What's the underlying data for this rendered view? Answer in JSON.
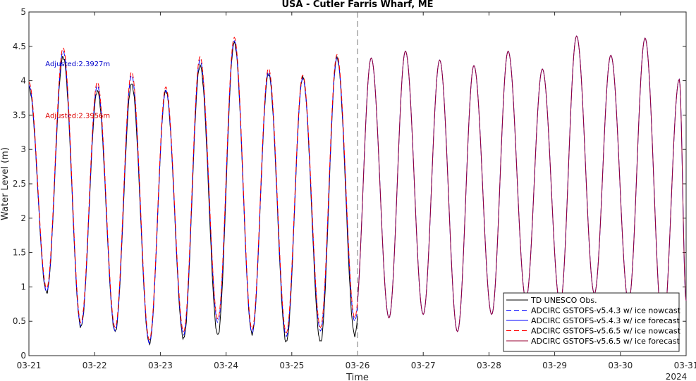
{
  "chart_data": {
    "type": "line",
    "title": "USA - Cutler Farris Wharf, ME",
    "xlabel": "Time",
    "ylabel": "Water Level (m)",
    "xlim": [
      "2024-03-21",
      "2024-03-31"
    ],
    "ylim": [
      0,
      5
    ],
    "yticks": [
      0,
      0.5,
      1,
      1.5,
      2,
      2.5,
      3,
      3.5,
      4,
      4.5,
      5
    ],
    "xticks": [
      "03-21",
      "03-22",
      "03-23",
      "03-24",
      "03-25",
      "03-26",
      "03-27",
      "03-28",
      "03-29",
      "03-30",
      "03-31"
    ],
    "year_label": "2024",
    "nowcast_end": "2024-03-26",
    "legend_position": "bottom-right",
    "annotations": [
      {
        "text": "Adjusted:2.3927m",
        "color": "#0000cc",
        "x": "2024-03-21 06:00",
        "y": 4.25
      },
      {
        "text": "Adjusted:2.3956m",
        "color": "#dd0000",
        "x": "2024-03-21 06:00",
        "y": 3.5
      }
    ],
    "extrema_times_hours": [
      0,
      6.5,
      12.5,
      19,
      25,
      31.5,
      37.5,
      44,
      50,
      56.5,
      62.5,
      69,
      75,
      81.5,
      87.5,
      94,
      100,
      106.5,
      112.5,
      119,
      125,
      131.5,
      137.5,
      144,
      150,
      156.5,
      162.5,
      169,
      175,
      181.5,
      187.5,
      194,
      200,
      206.5,
      212.5,
      219,
      225,
      231.5,
      237.5,
      240
    ],
    "extrema_levels_m": [
      3.95,
      0.95,
      4.45,
      0.45,
      3.95,
      0.38,
      4.1,
      0.2,
      3.88,
      0.32,
      4.32,
      0.5,
      4.6,
      0.35,
      4.15,
      0.3,
      4.05,
      0.38,
      4.35,
      0.52,
      4.33,
      0.55,
      4.43,
      0.6,
      4.3,
      0.35,
      4.22,
      0.6,
      4.43,
      0.82,
      4.17,
      0.75,
      4.65,
      0.9,
      4.37,
      0.78,
      4.62,
      0.35,
      4.02,
      0.8
    ],
    "observation_extrema_levels_m": [
      3.9,
      0.92,
      4.35,
      0.42,
      3.85,
      0.35,
      3.95,
      0.18,
      3.85,
      0.25,
      4.22,
      0.3,
      4.55,
      0.32,
      4.1,
      0.2,
      4.05,
      0.2,
      4.33,
      0.3
    ],
    "series": [
      {
        "name": "TD UNESCO Obs.",
        "color": "#000000",
        "dash": "solid",
        "range": [
          "2024-03-21",
          "2024-03-26"
        ]
      },
      {
        "name": "ADCIRC GSTOFS-v5.4.3 w/ ice nowcast",
        "color": "#0000ff",
        "dash": "dashed",
        "range": [
          "2024-03-21",
          "2024-03-26"
        ]
      },
      {
        "name": "ADCIRC GSTOFS-v5.4.3 w/ ice forecast",
        "color": "#0000ff",
        "dash": "solid",
        "range": [
          "2024-03-26",
          "2024-03-31"
        ]
      },
      {
        "name": "ADCIRC GSTOFS-v5.6.5 w/ ice nowcast",
        "color": "#ff0000",
        "dash": "dashed",
        "range": [
          "2024-03-21",
          "2024-03-26"
        ]
      },
      {
        "name": "ADCIRC GSTOFS-v5.6.5 w/ ice forecast",
        "color": "#990033",
        "dash": "solid",
        "range": [
          "2024-03-26",
          "2024-03-31"
        ]
      }
    ]
  }
}
